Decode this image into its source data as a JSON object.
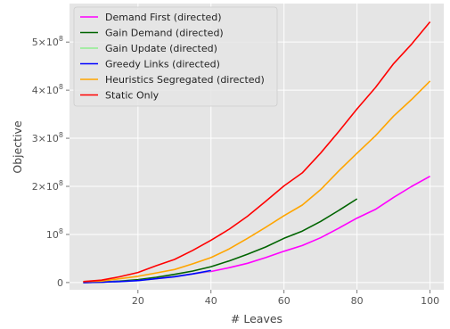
{
  "chart_data": {
    "type": "line",
    "title": "",
    "xlabel": "# Leaves",
    "ylabel": "Objective",
    "xlim": [
      1.25,
      103.75
    ],
    "ylim": [
      -15000000,
      580000000
    ],
    "xticks": [
      20,
      40,
      60,
      80,
      100
    ],
    "xtick_labels": [
      "20",
      "40",
      "60",
      "80",
      "100"
    ],
    "yticks": [
      0,
      100000000,
      200000000,
      300000000,
      400000000,
      500000000
    ],
    "ytick_labels": [
      {
        "base": "0",
        "exp": ""
      },
      {
        "base": "10",
        "exp": "8"
      },
      {
        "base": "2×10",
        "exp": "8"
      },
      {
        "base": "3×10",
        "exp": "8"
      },
      {
        "base": "4×10",
        "exp": "8"
      },
      {
        "base": "5×10",
        "exp": "8"
      }
    ],
    "grid": true,
    "legend_position": "top-left",
    "series": [
      {
        "name": "Demand First (directed)",
        "color": "#ff00ff",
        "x": [
          5,
          10,
          15,
          20,
          25,
          30,
          35,
          40,
          45,
          50,
          55,
          60,
          65,
          70,
          75,
          80,
          85,
          90,
          95,
          100
        ],
        "y": [
          0,
          1000000,
          3000000,
          5000000,
          9000000,
          13000000,
          18000000,
          23000000,
          31000000,
          40000000,
          52000000,
          65000000,
          77000000,
          93000000,
          113000000,
          134000000,
          152000000,
          177000000,
          200000000,
          221000000
        ]
      },
      {
        "name": "Gain Demand (directed)",
        "color": "#006400",
        "x": [
          5,
          10,
          15,
          20,
          25,
          30,
          35,
          40,
          45,
          50,
          55,
          60,
          65,
          70,
          75,
          80
        ],
        "y": [
          0,
          1000000,
          3000000,
          6000000,
          11000000,
          17000000,
          24000000,
          33000000,
          45000000,
          59000000,
          74000000,
          92000000,
          107000000,
          127000000,
          150000000,
          174000000
        ]
      },
      {
        "name": "Gain Update (directed)",
        "color": "#90ee90",
        "x": [
          5,
          10,
          15,
          20,
          25,
          30,
          35,
          40
        ],
        "y": [
          0,
          1000000,
          2000000,
          4000000,
          8000000,
          13000000,
          18000000,
          24000000
        ]
      },
      {
        "name": "Greedy Links (directed)",
        "color": "#0000ff",
        "x": [
          5,
          10,
          15,
          20,
          25,
          30,
          35,
          40
        ],
        "y": [
          0,
          1000000,
          2000000,
          4000000,
          8000000,
          12000000,
          18000000,
          25000000
        ]
      },
      {
        "name": "Heuristics Segregated (directed)",
        "color": "#ffa500",
        "x": [
          5,
          10,
          15,
          20,
          25,
          30,
          35,
          40,
          45,
          50,
          55,
          60,
          65,
          70,
          75,
          80,
          85,
          90,
          95,
          100
        ],
        "y": [
          2000000,
          3000000,
          8000000,
          13000000,
          20000000,
          27000000,
          39000000,
          52000000,
          70000000,
          92000000,
          115000000,
          139000000,
          161000000,
          193000000,
          232000000,
          269000000,
          305000000,
          346000000,
          381000000,
          419000000
        ]
      },
      {
        "name": "Static Only",
        "color": "#ff0000",
        "x": [
          5,
          10,
          15,
          20,
          25,
          30,
          35,
          40,
          45,
          50,
          55,
          60,
          65,
          70,
          75,
          80,
          85,
          90,
          95,
          100
        ],
        "y": [
          2000000,
          5000000,
          12000000,
          21000000,
          35000000,
          48000000,
          67000000,
          88000000,
          111000000,
          138000000,
          169000000,
          201000000,
          228000000,
          269000000,
          314000000,
          361000000,
          405000000,
          455000000,
          496000000,
          542000000
        ]
      }
    ]
  }
}
